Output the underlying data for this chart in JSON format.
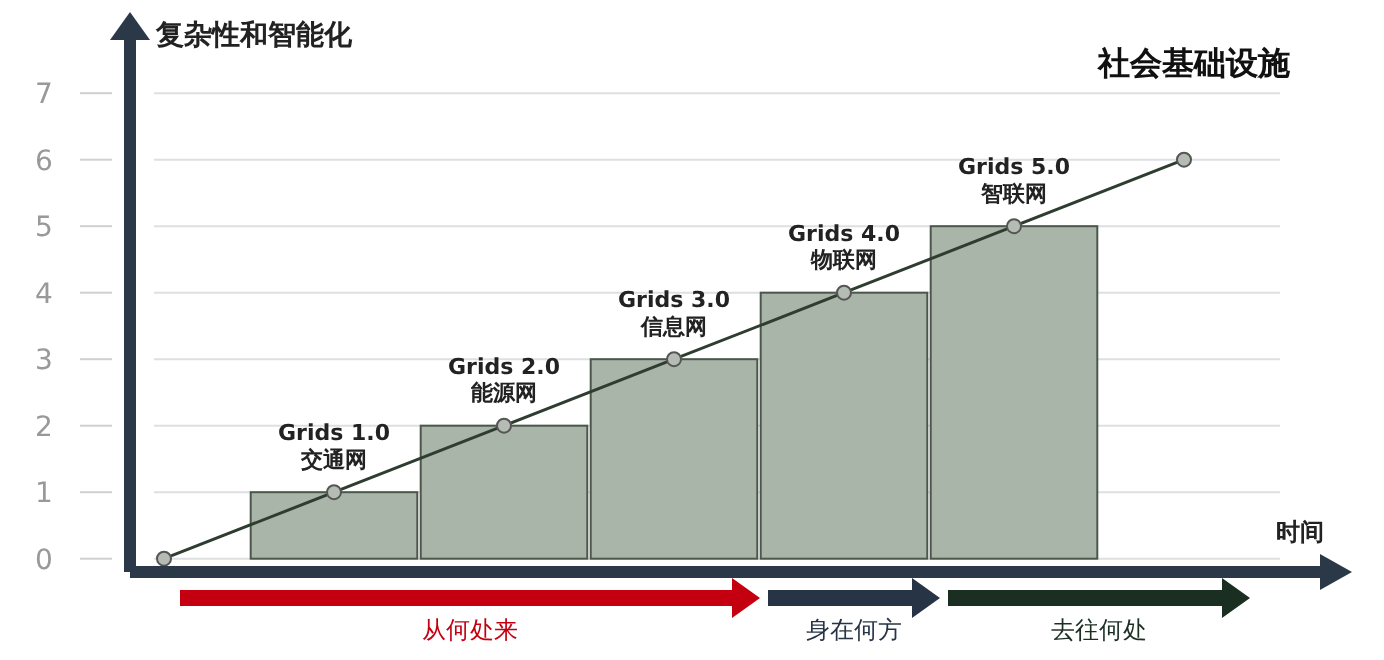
{
  "chart_data": {
    "type": "bar",
    "title": "社会基础设施",
    "ylabel": "复杂性和智能化",
    "xlabel": "时间",
    "categories": [
      null,
      null,
      null,
      null,
      null,
      null,
      null
    ],
    "series": [
      {
        "color": "#aab5a9",
        "values": [
          null,
          1,
          2,
          3,
          4,
          5,
          null
        ]
      },
      {
        "type": "line",
        "color": "#2f3d30",
        "values": [
          0,
          1,
          2,
          3,
          4,
          5,
          6
        ],
        "marker": "circle",
        "line_style": "solid"
      }
    ],
    "ylim": [
      -0.2,
      7.8
    ],
    "yticks": [
      0,
      1,
      2,
      3,
      4,
      5,
      6,
      7
    ],
    "tick_labels": "y",
    "grid": "y",
    "annotations": [
      "Grids 1.0\n交通网",
      "Grids 2.0\n能源网",
      "Grids 3.0\n信息网",
      "Grids 4.0\n物联网",
      "Grids 5.0\n智联网",
      "从何处来",
      "身在何方",
      "去往何处"
    ]
  }
}
